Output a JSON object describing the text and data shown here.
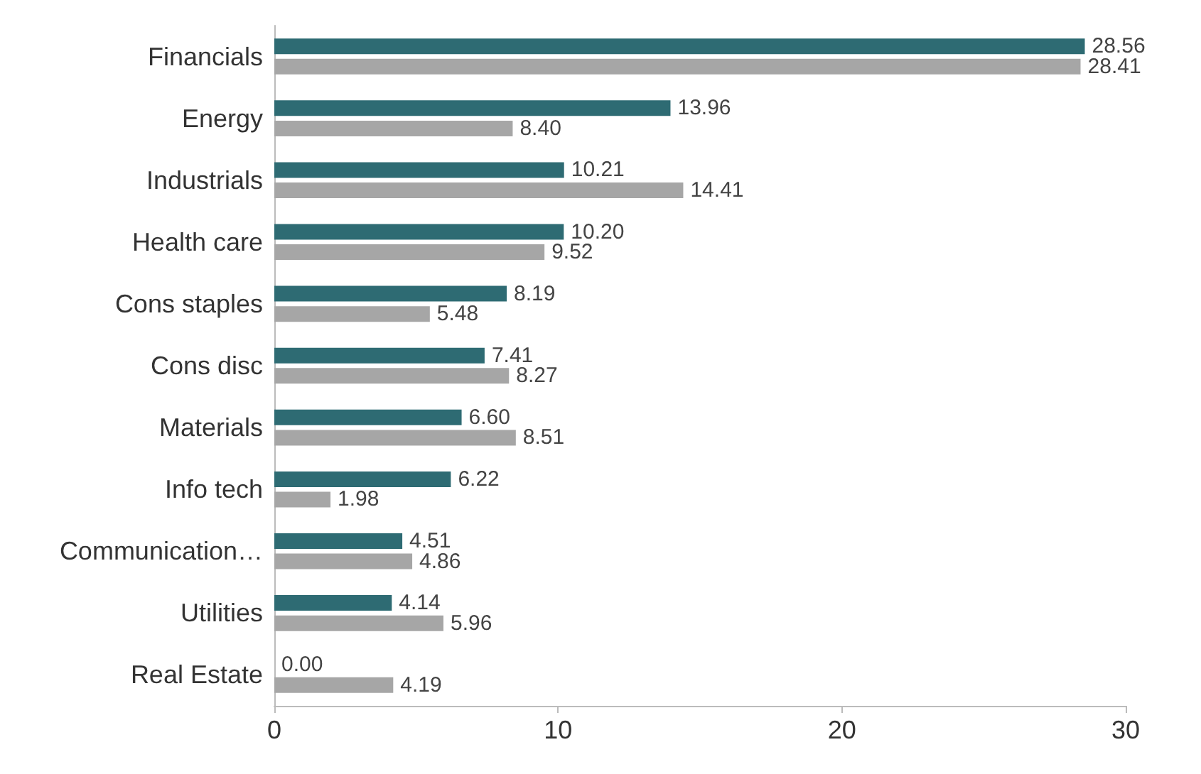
{
  "chart_data": {
    "type": "bar",
    "orientation": "horizontal",
    "categories": [
      "Financials",
      "Energy",
      "Industrials",
      "Health care",
      "Cons staples",
      "Cons disc",
      "Materials",
      "Info tech",
      "Communication…",
      "Utilities",
      "Real Estate"
    ],
    "series": [
      {
        "color": "#2e6b73",
        "values": [
          28.56,
          13.96,
          10.21,
          10.2,
          8.19,
          7.41,
          6.6,
          6.22,
          4.51,
          4.14,
          0.0
        ],
        "value_labels": [
          "28.56",
          "13.96",
          "10.21",
          "10.20",
          "8.19",
          "7.41",
          "6.60",
          "6.22",
          "4.51",
          "4.14",
          "0.00"
        ]
      },
      {
        "color": "#a6a6a6",
        "values": [
          28.41,
          8.4,
          14.41,
          9.52,
          5.48,
          8.27,
          8.51,
          1.98,
          4.86,
          5.96,
          4.19
        ],
        "value_labels": [
          "28.41",
          "8.40",
          "14.41",
          "9.52",
          "5.48",
          "8.27",
          "8.51",
          "1.98",
          "4.86",
          "5.96",
          "4.19"
        ]
      }
    ],
    "xlim": [
      0,
      30
    ],
    "xticks": [
      0,
      10,
      20,
      30
    ],
    "grid": false
  }
}
